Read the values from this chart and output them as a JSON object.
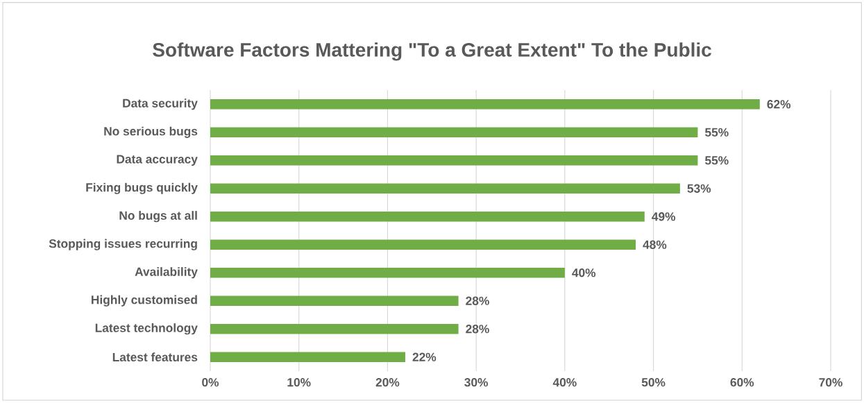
{
  "chart_data": {
    "type": "bar",
    "orientation": "horizontal",
    "title": "Software Factors Mattering \"To a Great Extent\" To the Public",
    "categories": [
      "Data security",
      "No serious bugs",
      "Data accuracy",
      "Fixing bugs quickly",
      "No bugs at all",
      "Stopping issues recurring",
      "Availability",
      "Highly customised",
      "Latest technology",
      "Latest features"
    ],
    "values": [
      62,
      55,
      55,
      53,
      49,
      48,
      40,
      28,
      28,
      22
    ],
    "value_labels": [
      "62%",
      "55%",
      "55%",
      "53%",
      "49%",
      "48%",
      "40%",
      "28%",
      "28%",
      "22%"
    ],
    "color": "#70ad47",
    "xlim": [
      0,
      70
    ],
    "xticks": [
      {
        "value": 0,
        "label": "0%"
      },
      {
        "value": 10,
        "label": "10%"
      },
      {
        "value": 20,
        "label": "20%"
      },
      {
        "value": 30,
        "label": "30%"
      },
      {
        "value": 40,
        "label": "40%"
      },
      {
        "value": 50,
        "label": "50%"
      },
      {
        "value": 60,
        "label": "60%"
      },
      {
        "value": 70,
        "label": "70%"
      }
    ],
    "grid": "x"
  }
}
